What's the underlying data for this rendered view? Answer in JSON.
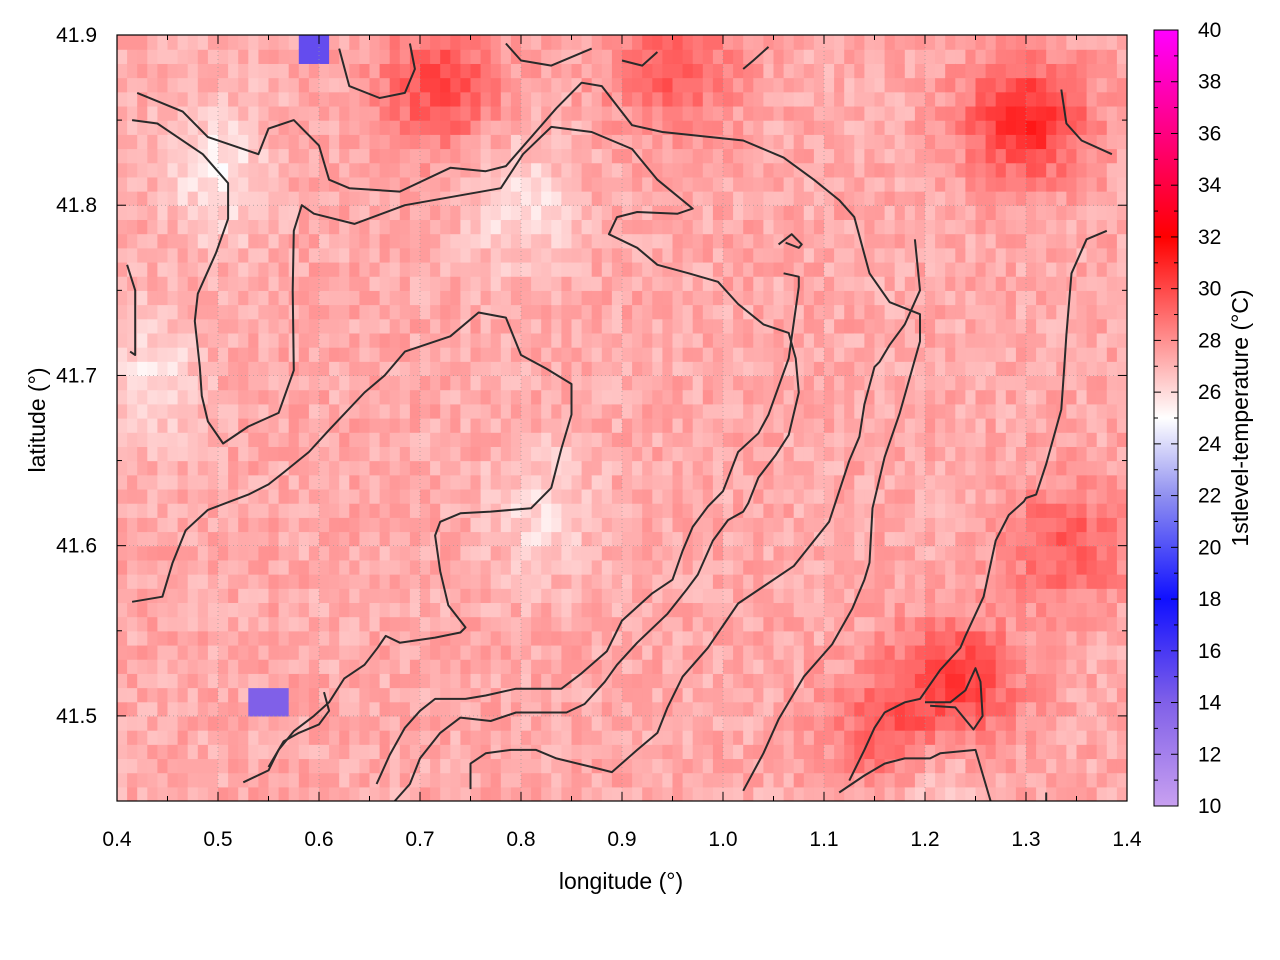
{
  "chart_data": {
    "type": "heatmap",
    "title": "",
    "xlabel": "longitude (°)",
    "ylabel": "latitude (°)",
    "colorbar_label": "1stlevel-temperature (°C)",
    "xlim": [
      0.4,
      1.4
    ],
    "ylim": [
      41.45,
      41.9
    ],
    "x_ticks": [
      "0.4",
      "0.5",
      "0.6",
      "0.7",
      "0.8",
      "0.9",
      "1.0",
      "1.1",
      "1.2",
      "1.3",
      "1.4"
    ],
    "y_ticks": [
      "41.5",
      "41.6",
      "41.7",
      "41.8",
      "41.9"
    ],
    "colorbar_ticks": [
      "10",
      "12",
      "14",
      "16",
      "18",
      "20",
      "22",
      "24",
      "26",
      "28",
      "30",
      "32",
      "34",
      "36",
      "38",
      "40"
    ],
    "colorbar_range": [
      10,
      40
    ],
    "colormap": [
      {
        "value": 10,
        "color": "#c8a0f0"
      },
      {
        "value": 14,
        "color": "#8060e8"
      },
      {
        "value": 18,
        "color": "#1010ff"
      },
      {
        "value": 22,
        "color": "#9090f0"
      },
      {
        "value": 25,
        "color": "#ffffff"
      },
      {
        "value": 28,
        "color": "#ff9090"
      },
      {
        "value": 32,
        "color": "#ff0000"
      },
      {
        "value": 36,
        "color": "#ff0080"
      },
      {
        "value": 40,
        "color": "#ff00ff"
      }
    ],
    "grid": true,
    "field_estimate": {
      "base_temperature": 27.3,
      "warm_areas": [
        {
          "lon": 1.3,
          "lat": 41.85,
          "value": 31
        },
        {
          "lon": 0.72,
          "lat": 41.87,
          "value": 30
        },
        {
          "lon": 1.23,
          "lat": 41.52,
          "value": 30.5
        },
        {
          "lon": 1.17,
          "lat": 41.49,
          "value": 30
        },
        {
          "lon": 1.34,
          "lat": 41.6,
          "value": 29.5
        },
        {
          "lon": 0.95,
          "lat": 41.88,
          "value": 29.5
        }
      ],
      "cool_areas": [
        {
          "lon": 0.5,
          "lat": 41.82,
          "value": 25.5
        },
        {
          "lon": 0.43,
          "lat": 41.7,
          "value": 25.8
        },
        {
          "lon": 0.8,
          "lat": 41.8,
          "value": 25.8
        },
        {
          "lon": 0.82,
          "lat": 41.62,
          "value": 26
        },
        {
          "lon": 1.2,
          "lat": 41.48,
          "value": 25.5
        }
      ],
      "anomalies": [
        {
          "lon": 0.597,
          "lat": 41.893,
          "value": 15
        },
        {
          "lon": 0.55,
          "lat": 41.51,
          "value": 14
        }
      ]
    },
    "contours": [
      [
        [
          0.42,
          41.866
        ],
        [
          0.465,
          41.855
        ],
        [
          0.49,
          41.84
        ],
        [
          0.54,
          41.83
        ],
        [
          0.55,
          41.845
        ],
        [
          0.575,
          41.85
        ],
        [
          0.6,
          41.835
        ],
        [
          0.61,
          41.815
        ],
        [
          0.63,
          41.81
        ],
        [
          0.68,
          41.808
        ],
        [
          0.73,
          41.822
        ],
        [
          0.765,
          41.82
        ],
        [
          0.785,
          41.823
        ],
        [
          0.835,
          41.857
        ],
        [
          0.86,
          41.872
        ],
        [
          0.88,
          41.87
        ],
        [
          0.91,
          41.847
        ],
        [
          0.94,
          41.843
        ],
        [
          1.02,
          41.838
        ],
        [
          1.06,
          41.828
        ],
        [
          1.09,
          41.815
        ],
        [
          1.115,
          41.803
        ],
        [
          1.13,
          41.793
        ],
        [
          1.145,
          41.76
        ],
        [
          1.165,
          41.743
        ],
        [
          1.195,
          41.736
        ],
        [
          1.195,
          41.72
        ],
        [
          1.175,
          41.678
        ],
        [
          1.16,
          41.652
        ],
        [
          1.148,
          41.622
        ],
        [
          1.145,
          41.59
        ],
        [
          1.14,
          41.58
        ],
        [
          1.128,
          41.563
        ],
        [
          1.108,
          41.542
        ],
        [
          1.08,
          41.523
        ],
        [
          1.055,
          41.498
        ],
        [
          1.04,
          41.478
        ],
        [
          1.02,
          41.456
        ]
      ],
      [
        [
          0.415,
          41.85
        ],
        [
          0.44,
          41.848
        ],
        [
          0.485,
          41.83
        ],
        [
          0.51,
          41.813
        ],
        [
          0.51,
          41.792
        ],
        [
          0.498,
          41.772
        ],
        [
          0.48,
          41.748
        ],
        [
          0.477,
          41.732
        ],
        [
          0.482,
          41.705
        ],
        [
          0.484,
          41.688
        ],
        [
          0.49,
          41.673
        ],
        [
          0.505,
          41.66
        ],
        [
          0.53,
          41.67
        ],
        [
          0.56,
          41.678
        ],
        [
          0.575,
          41.703
        ],
        [
          0.574,
          41.75
        ],
        [
          0.575,
          41.785
        ],
        [
          0.583,
          41.8
        ],
        [
          0.595,
          41.795
        ],
        [
          0.635,
          41.789
        ],
        [
          0.685,
          41.8
        ],
        [
          0.78,
          41.81
        ],
        [
          0.802,
          41.83
        ],
        [
          0.83,
          41.846
        ],
        [
          0.87,
          41.843
        ],
        [
          0.91,
          41.833
        ],
        [
          0.935,
          41.815
        ],
        [
          0.97,
          41.798
        ],
        [
          0.955,
          41.795
        ],
        [
          0.915,
          41.796
        ],
        [
          0.895,
          41.793
        ],
        [
          0.887,
          41.783
        ],
        [
          0.915,
          41.775
        ],
        [
          0.935,
          41.765
        ],
        [
          0.966,
          41.76
        ],
        [
          0.995,
          41.755
        ],
        [
          1.015,
          41.742
        ],
        [
          1.04,
          41.73
        ],
        [
          1.065,
          41.725
        ],
        [
          1.072,
          41.71
        ],
        [
          1.075,
          41.69
        ],
        [
          1.065,
          41.665
        ],
        [
          1.052,
          41.653
        ],
        [
          1.035,
          41.64
        ],
        [
          1.025,
          41.625
        ],
        [
          1.02,
          41.62
        ],
        [
          1.005,
          41.615
        ],
        [
          0.99,
          41.603
        ],
        [
          0.975,
          41.583
        ],
        [
          0.965,
          41.575
        ],
        [
          0.945,
          41.56
        ],
        [
          0.915,
          41.543
        ],
        [
          0.895,
          41.53
        ],
        [
          0.883,
          41.52
        ],
        [
          0.863,
          41.507
        ],
        [
          0.845,
          41.502
        ],
        [
          0.795,
          41.502
        ],
        [
          0.77,
          41.497
        ],
        [
          0.74,
          41.499
        ],
        [
          0.72,
          41.49
        ],
        [
          0.7,
          41.475
        ],
        [
          0.69,
          41.46
        ],
        [
          0.675,
          41.45
        ]
      ],
      [
        [
          0.413,
          41.714
        ],
        [
          0.418,
          41.712
        ],
        [
          0.418,
          41.75
        ],
        [
          0.41,
          41.765
        ]
      ],
      [
        [
          0.415,
          41.567
        ],
        [
          0.445,
          41.57
        ],
        [
          0.455,
          41.59
        ],
        [
          0.468,
          41.609
        ],
        [
          0.49,
          41.621
        ],
        [
          0.53,
          41.63
        ],
        [
          0.55,
          41.636
        ],
        [
          0.565,
          41.643
        ],
        [
          0.59,
          41.655
        ],
        [
          0.61,
          41.668
        ],
        [
          0.645,
          41.69
        ],
        [
          0.665,
          41.7
        ],
        [
          0.685,
          41.714
        ],
        [
          0.73,
          41.723
        ],
        [
          0.758,
          41.737
        ],
        [
          0.785,
          41.734
        ],
        [
          0.8,
          41.712
        ],
        [
          0.825,
          41.704
        ],
        [
          0.85,
          41.695
        ],
        [
          0.85,
          41.677
        ],
        [
          0.84,
          41.657
        ],
        [
          0.83,
          41.634
        ],
        [
          0.81,
          41.622
        ],
        [
          0.77,
          41.62
        ],
        [
          0.74,
          41.619
        ],
        [
          0.72,
          41.614
        ],
        [
          0.715,
          41.606
        ],
        [
          0.72,
          41.585
        ],
        [
          0.728,
          41.565
        ],
        [
          0.745,
          41.552
        ],
        [
          0.74,
          41.549
        ],
        [
          0.715,
          41.546
        ],
        [
          0.68,
          41.543
        ],
        [
          0.666,
          41.547
        ],
        [
          0.658,
          41.54
        ],
        [
          0.645,
          41.53
        ],
        [
          0.625,
          41.522
        ],
        [
          0.61,
          41.508
        ],
        [
          0.595,
          41.5
        ],
        [
          0.575,
          41.491
        ],
        [
          0.56,
          41.48
        ],
        [
          0.55,
          41.468
        ],
        [
          0.525,
          41.461
        ]
      ],
      [
        [
          0.605,
          41.514
        ],
        [
          0.61,
          41.503
        ],
        [
          0.6,
          41.495
        ],
        [
          0.58,
          41.49
        ],
        [
          0.565,
          41.485
        ],
        [
          0.55,
          41.47
        ]
      ],
      [
        [
          0.657,
          41.46
        ],
        [
          0.67,
          41.477
        ],
        [
          0.685,
          41.493
        ],
        [
          0.7,
          41.503
        ],
        [
          0.715,
          41.51
        ],
        [
          0.745,
          41.51
        ],
        [
          0.765,
          41.512
        ],
        [
          0.795,
          41.516
        ],
        [
          0.84,
          41.516
        ],
        [
          0.86,
          41.525
        ],
        [
          0.885,
          41.538
        ],
        [
          0.9,
          41.556
        ],
        [
          0.93,
          41.572
        ],
        [
          0.95,
          41.58
        ],
        [
          0.96,
          41.597
        ],
        [
          0.97,
          41.611
        ],
        [
          0.985,
          41.623
        ],
        [
          1.0,
          41.632
        ],
        [
          1.015,
          41.655
        ],
        [
          1.035,
          41.666
        ],
        [
          1.045,
          41.677
        ],
        [
          1.065,
          41.71
        ],
        [
          1.075,
          41.752
        ],
        [
          1.075,
          41.758
        ],
        [
          1.06,
          41.76
        ]
      ],
      [
        [
          0.75,
          41.457
        ],
        [
          0.75,
          41.472
        ],
        [
          0.765,
          41.478
        ],
        [
          0.79,
          41.48
        ],
        [
          0.815,
          41.48
        ],
        [
          0.835,
          41.475
        ],
        [
          0.87,
          41.47
        ],
        [
          0.89,
          41.467
        ],
        [
          0.915,
          41.48
        ],
        [
          0.935,
          41.49
        ],
        [
          0.945,
          41.505
        ],
        [
          0.96,
          41.523
        ],
        [
          0.985,
          41.54
        ],
        [
          1.015,
          41.566
        ],
        [
          1.04,
          41.576
        ],
        [
          1.07,
          41.588
        ],
        [
          1.105,
          41.614
        ],
        [
          1.125,
          41.65
        ],
        [
          1.135,
          41.664
        ],
        [
          1.14,
          41.683
        ],
        [
          1.15,
          41.705
        ],
        [
          1.155,
          41.708
        ],
        [
          1.165,
          41.718
        ],
        [
          1.18,
          41.73
        ],
        [
          1.195,
          41.75
        ],
        [
          1.19,
          41.78
        ]
      ],
      [
        [
          1.115,
          41.455
        ],
        [
          1.14,
          41.465
        ],
        [
          1.16,
          41.472
        ],
        [
          1.18,
          41.475
        ],
        [
          1.205,
          41.475
        ],
        [
          1.215,
          41.478
        ],
        [
          1.25,
          41.48
        ],
        [
          1.265,
          41.45
        ]
      ],
      [
        [
          1.125,
          41.462
        ],
        [
          1.14,
          41.48
        ],
        [
          1.15,
          41.493
        ],
        [
          1.16,
          41.502
        ],
        [
          1.18,
          41.508
        ],
        [
          1.195,
          41.51
        ],
        [
          1.215,
          41.527
        ],
        [
          1.235,
          41.54
        ],
        [
          1.24,
          41.547
        ],
        [
          1.258,
          41.57
        ],
        [
          1.27,
          41.603
        ],
        [
          1.283,
          41.618
        ],
        [
          1.298,
          41.626
        ],
        [
          1.3,
          41.628
        ],
        [
          1.31,
          41.63
        ],
        [
          1.32,
          41.648
        ],
        [
          1.335,
          41.68
        ],
        [
          1.338,
          41.706
        ],
        [
          1.34,
          41.724
        ],
        [
          1.345,
          41.76
        ],
        [
          1.36,
          41.78
        ],
        [
          1.38,
          41.785
        ]
      ],
      [
        [
          1.2,
          41.508
        ],
        [
          1.225,
          41.508
        ],
        [
          1.24,
          41.515
        ],
        [
          1.25,
          41.528
        ],
        [
          1.255,
          41.52
        ],
        [
          1.257,
          41.5
        ],
        [
          1.248,
          41.492
        ],
        [
          1.23,
          41.505
        ],
        [
          1.205,
          41.506
        ]
      ],
      [
        [
          1.055,
          41.777
        ],
        [
          1.068,
          41.783
        ],
        [
          1.078,
          41.777
        ],
        [
          1.075,
          41.775
        ],
        [
          1.062,
          41.778
        ]
      ],
      [
        [
          0.62,
          41.892
        ],
        [
          0.63,
          41.87
        ],
        [
          0.66,
          41.863
        ],
        [
          0.685,
          41.866
        ],
        [
          0.695,
          41.88
        ],
        [
          0.69,
          41.895
        ]
      ],
      [
        [
          0.785,
          41.895
        ],
        [
          0.8,
          41.885
        ],
        [
          0.83,
          41.882
        ],
        [
          0.87,
          41.892
        ]
      ],
      [
        [
          0.9,
          41.885
        ],
        [
          0.92,
          41.882
        ],
        [
          0.935,
          41.89
        ]
      ],
      [
        [
          1.02,
          41.88
        ],
        [
          1.03,
          41.885
        ],
        [
          1.045,
          41.893
        ]
      ],
      [
        [
          1.335,
          41.868
        ],
        [
          1.34,
          41.848
        ],
        [
          1.355,
          41.838
        ],
        [
          1.385,
          41.83
        ]
      ],
      [
        [
          1.32,
          41.455
        ],
        [
          1.32,
          41.45
        ]
      ]
    ]
  }
}
